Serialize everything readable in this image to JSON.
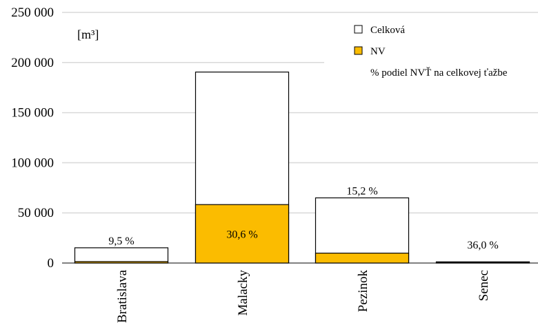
{
  "chart_data": {
    "type": "bar",
    "unit_label": "[m³]",
    "categories": [
      "Bratislava",
      "Malacky",
      "Pezinok",
      "Senec"
    ],
    "series": [
      {
        "name": "Celková",
        "values": [
          15200,
          190500,
          65000,
          1200
        ]
      },
      {
        "name": "NV",
        "values": [
          1444,
          58300,
          9880,
          432
        ]
      }
    ],
    "percent_labels": [
      "9,5 %",
      "30,6 %",
      "15,2 %",
      "36,0 %"
    ],
    "percent_series_name": "% podiel NVŤ na celkovej ťažbe",
    "y_ticks": [
      0,
      50000,
      100000,
      150000,
      200000,
      250000
    ],
    "y_tick_labels": [
      "0",
      "50 000",
      "100 000",
      "150 000",
      "200 000",
      "250 000"
    ],
    "ylim": [
      0,
      250000
    ],
    "grid": true,
    "legend_position": "top-right",
    "colors": {
      "total_fill": "#ffffff",
      "nv_fill": "#fbbc00",
      "bar_stroke": "#000000",
      "grid": "#d9d9d9"
    }
  }
}
